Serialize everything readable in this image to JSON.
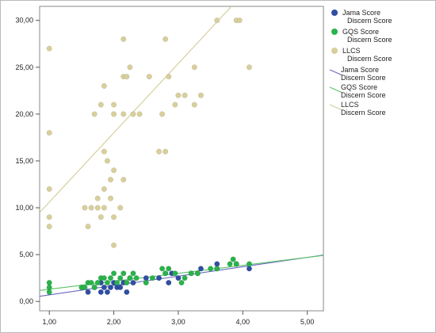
{
  "chart_data": {
    "type": "scatter",
    "title": "",
    "xlabel": "",
    "ylabel": "",
    "xlim": [
      0.85,
      5.25
    ],
    "ylim": [
      -1.0,
      31.5
    ],
    "x_ticks": [
      1.0,
      2.0,
      3.0,
      4.0,
      5.0
    ],
    "x_tick_labels": [
      "1,00",
      "2,00",
      "3,00",
      "4,00",
      "5,00"
    ],
    "y_ticks": [
      0,
      5,
      10,
      15,
      20,
      25,
      30
    ],
    "y_tick_labels": [
      "0,00",
      "5,00",
      "10,00",
      "15,00",
      "20,00",
      "25,00",
      "30,00"
    ],
    "grid": false,
    "legend_position": "right",
    "series": [
      {
        "name": "Jama Score Discern Score",
        "legend_lines": [
          "Jama Score",
          "Discern Score"
        ],
        "color": "#2f4ea3",
        "points": [
          [
            1.6,
            1.0
          ],
          [
            1.7,
            1.5
          ],
          [
            1.8,
            1.0
          ],
          [
            1.8,
            2.0
          ],
          [
            1.85,
            1.5
          ],
          [
            1.9,
            1.0
          ],
          [
            1.95,
            1.5
          ],
          [
            2.0,
            2.0
          ],
          [
            2.05,
            1.5
          ],
          [
            2.1,
            1.5
          ],
          [
            2.15,
            2.0
          ],
          [
            2.2,
            1.0
          ],
          [
            2.25,
            2.5
          ],
          [
            2.3,
            2.0
          ],
          [
            2.5,
            2.5
          ],
          [
            2.7,
            2.5
          ],
          [
            2.8,
            3.0
          ],
          [
            2.85,
            2.0
          ],
          [
            2.9,
            3.0
          ],
          [
            3.0,
            2.5
          ],
          [
            3.2,
            3.0
          ],
          [
            3.3,
            3.0
          ],
          [
            3.35,
            3.5
          ],
          [
            3.6,
            3.5
          ],
          [
            3.6,
            4.0
          ],
          [
            3.9,
            4.0
          ],
          [
            4.1,
            3.5
          ]
        ]
      },
      {
        "name": "GQS Score Discern Score",
        "legend_lines": [
          "GQS Score",
          "Discern Score"
        ],
        "color": "#2ab34a",
        "points": [
          [
            1.0,
            1.0
          ],
          [
            1.0,
            1.5
          ],
          [
            1.0,
            2.0
          ],
          [
            1.5,
            1.5
          ],
          [
            1.55,
            1.5
          ],
          [
            1.6,
            2.0
          ],
          [
            1.65,
            2.0
          ],
          [
            1.7,
            1.5
          ],
          [
            1.75,
            2.0
          ],
          [
            1.8,
            2.5
          ],
          [
            1.85,
            2.5
          ],
          [
            1.9,
            2.0
          ],
          [
            1.95,
            2.5
          ],
          [
            2.0,
            3.0
          ],
          [
            2.05,
            2.0
          ],
          [
            2.1,
            2.5
          ],
          [
            2.15,
            3.0
          ],
          [
            2.2,
            2.0
          ],
          [
            2.25,
            2.5
          ],
          [
            2.3,
            3.0
          ],
          [
            2.35,
            2.5
          ],
          [
            2.5,
            2.0
          ],
          [
            2.6,
            2.5
          ],
          [
            2.75,
            3.5
          ],
          [
            2.8,
            3.0
          ],
          [
            2.85,
            3.5
          ],
          [
            2.95,
            3.0
          ],
          [
            3.05,
            2.0
          ],
          [
            3.1,
            2.5
          ],
          [
            3.2,
            3.0
          ],
          [
            3.3,
            3.0
          ],
          [
            3.5,
            3.5
          ],
          [
            3.6,
            3.5
          ],
          [
            3.8,
            4.0
          ],
          [
            3.85,
            4.5
          ],
          [
            3.9,
            4.0
          ],
          [
            4.1,
            4.0
          ]
        ]
      },
      {
        "name": "LLCS Discern Score",
        "legend_lines": [
          "LLCS",
          "Discern Score"
        ],
        "color": "#d8cf9c",
        "points": [
          [
            1.0,
            27.0
          ],
          [
            1.0,
            18.0
          ],
          [
            1.0,
            12.0
          ],
          [
            1.0,
            9.0
          ],
          [
            1.0,
            8.0
          ],
          [
            1.55,
            10.0
          ],
          [
            1.6,
            8.0
          ],
          [
            1.65,
            10.0
          ],
          [
            1.7,
            20.0
          ],
          [
            1.75,
            11.0
          ],
          [
            1.75,
            10.0
          ],
          [
            1.8,
            21.0
          ],
          [
            1.8,
            9.0
          ],
          [
            1.85,
            23.0
          ],
          [
            1.85,
            16.0
          ],
          [
            1.85,
            12.0
          ],
          [
            1.85,
            10.0
          ],
          [
            1.9,
            15.0
          ],
          [
            1.95,
            13.0
          ],
          [
            1.95,
            11.0
          ],
          [
            2.0,
            21.0
          ],
          [
            2.0,
            20.0
          ],
          [
            2.0,
            14.0
          ],
          [
            2.0,
            9.0
          ],
          [
            2.0,
            6.0
          ],
          [
            2.1,
            10.0
          ],
          [
            2.15,
            13.0
          ],
          [
            2.15,
            28.0
          ],
          [
            2.15,
            24.0
          ],
          [
            2.15,
            20.0
          ],
          [
            2.2,
            24.0
          ],
          [
            2.25,
            25.0
          ],
          [
            2.3,
            20.0
          ],
          [
            2.4,
            20.0
          ],
          [
            2.55,
            24.0
          ],
          [
            2.7,
            16.0
          ],
          [
            2.75,
            20.0
          ],
          [
            2.8,
            16.0
          ],
          [
            2.8,
            28.0
          ],
          [
            2.85,
            24.0
          ],
          [
            2.95,
            21.0
          ],
          [
            3.0,
            22.0
          ],
          [
            3.1,
            22.0
          ],
          [
            3.25,
            25.0
          ],
          [
            3.25,
            21.0
          ],
          [
            3.35,
            22.0
          ],
          [
            3.6,
            30.0
          ],
          [
            3.9,
            30.0
          ],
          [
            3.95,
            30.0
          ],
          [
            4.1,
            25.0
          ]
        ]
      }
    ],
    "fit_lines": [
      {
        "name": "Jama Score Discern Score",
        "legend_lines": [
          "Jama Score",
          "Discern Score"
        ],
        "color": "#6b66c2",
        "intercept": -0.3,
        "slope": 1.0
      },
      {
        "name": "GQS Score Discern Score",
        "legend_lines": [
          "GQS Score",
          "Discern Score"
        ],
        "color": "#59c26a",
        "intercept": 0.45,
        "slope": 0.85
      },
      {
        "name": "LLCS Discern Score",
        "legend_lines": [
          "LLCS",
          "Discern Score"
        ],
        "color": "#d2cc96",
        "intercept": 3.2,
        "slope": 7.4
      }
    ]
  }
}
